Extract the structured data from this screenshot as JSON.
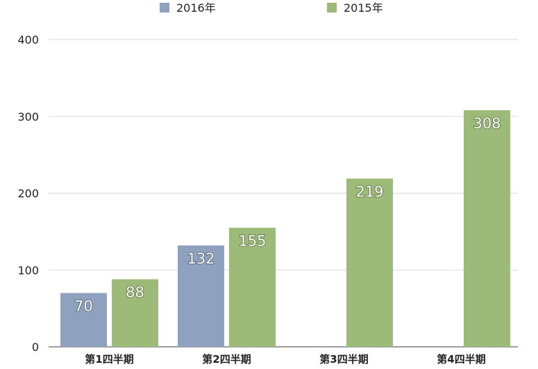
{
  "chart_data": {
    "type": "bar",
    "categories": [
      "第1四半期",
      "第2四半期",
      "第3四半期",
      "第4四半期"
    ],
    "series": [
      {
        "name": "2016年",
        "values": [
          70,
          132,
          null,
          null
        ],
        "color": "#8ea2bf"
      },
      {
        "name": "2015年",
        "values": [
          88,
          155,
          219,
          308
        ],
        "color": "#9dbb78"
      }
    ],
    "ylim": [
      0,
      400
    ],
    "yticks": [
      0,
      100,
      200,
      300,
      400
    ],
    "grid": true,
    "legend_position": "top",
    "data_labels": true
  }
}
